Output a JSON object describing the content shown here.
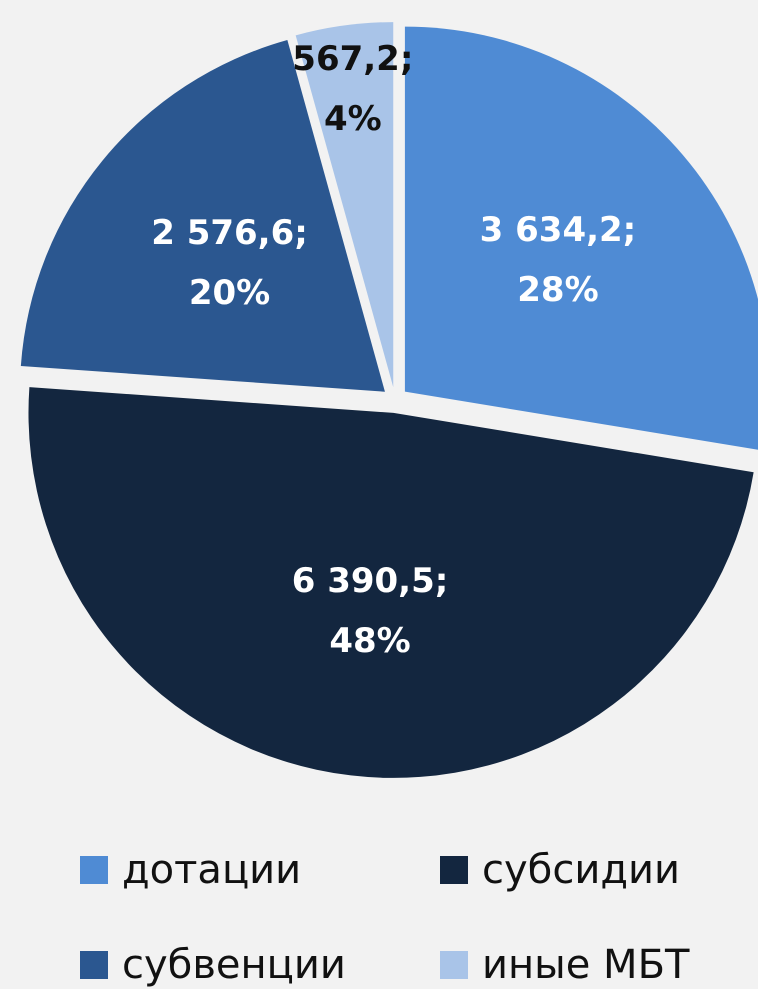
{
  "chart_data": {
    "type": "pie",
    "categories": [
      "дотации",
      "субсидии",
      "субвенции",
      "иные МБТ"
    ],
    "values": [
      3634.2,
      6390.5,
      2576.6,
      567.2
    ],
    "value_labels": [
      "3 634,2;",
      "6 390,5;",
      "2 576,6;",
      "567,2;"
    ],
    "percent_labels": [
      "28%",
      "48%",
      "20%",
      "4%"
    ],
    "colors": [
      "#4f8bd4",
      "#13263f",
      "#2b5790",
      "#a9c4e8"
    ],
    "label_colors": [
      "#ffffff",
      "#ffffff",
      "#ffffff",
      "#111111"
    ],
    "legend": "bottom"
  }
}
